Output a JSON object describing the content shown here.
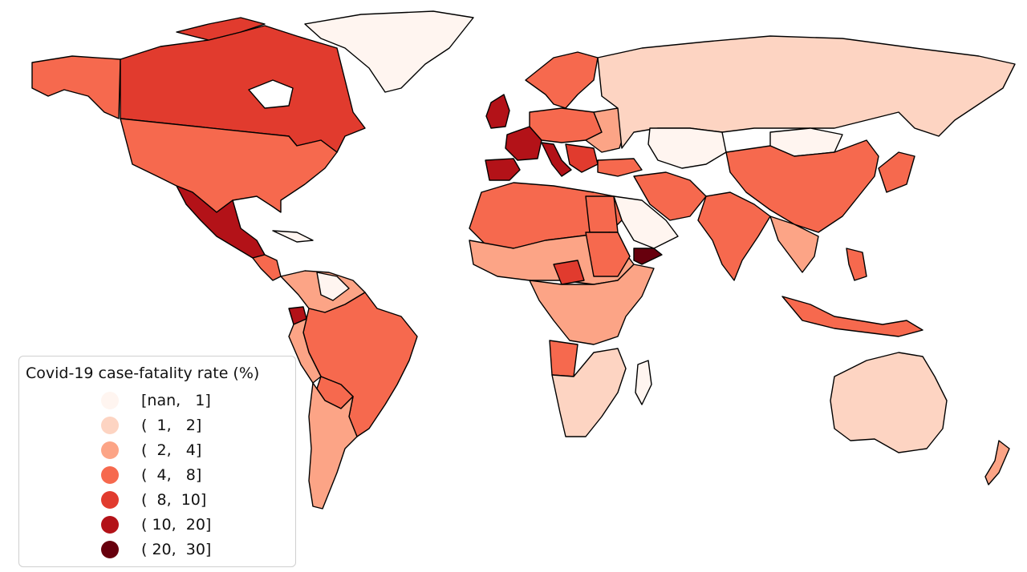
{
  "colors": {
    "c0": "#fff5f0",
    "c1": "#fdd4c2",
    "c2": "#fca486",
    "c3": "#f6694e",
    "c4": "#e13b2e",
    "c5": "#b31218",
    "c6": "#67000d"
  },
  "legend": {
    "title": "Covid-19 case-fatality rate (%)",
    "items": [
      {
        "label": "[nan,   1]",
        "color": "#fff5f0"
      },
      {
        "label": "(  1,   2]",
        "color": "#fdd4c2"
      },
      {
        "label": "(  2,   4]",
        "color": "#fca486"
      },
      {
        "label": "(  4,   8]",
        "color": "#f6694e"
      },
      {
        "label": "(  8,  10]",
        "color": "#e13b2e"
      },
      {
        "label": "( 10,  20]",
        "color": "#b31218"
      },
      {
        "label": "( 20,  30]",
        "color": "#67000d"
      }
    ]
  }
}
